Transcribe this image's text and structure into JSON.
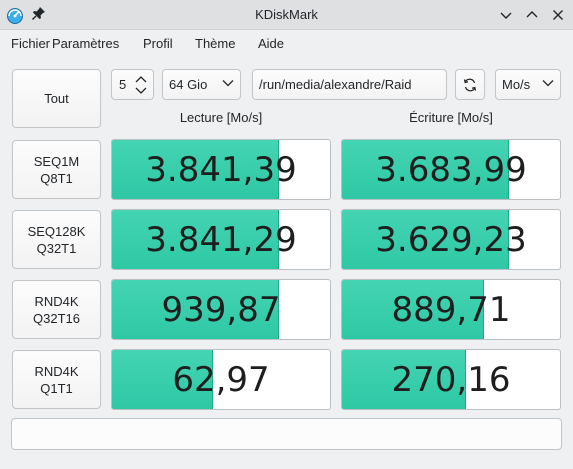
{
  "window": {
    "title": "KDiskMark"
  },
  "menu": [
    "Fichier",
    "Paramètres",
    "Profil",
    "Thème",
    "Aide"
  ],
  "toolbar": {
    "all_button": "Tout",
    "runs": "5",
    "size": "64 Gio",
    "path": "/run/media/alexandre/Raid",
    "unit": "Mo/s"
  },
  "headers": {
    "read": "Lecture [Mo/s]",
    "write": "Écriture [Mo/s]"
  },
  "tests": [
    {
      "name": "SEQ1M\nQ8T1",
      "read": "3.841,39",
      "write": "3.683,99",
      "read_fill": 0.765,
      "write_fill": 0.765
    },
    {
      "name": "SEQ128K\nQ32T1",
      "read": "3.841,29",
      "write": "3.629,23",
      "read_fill": 0.765,
      "write_fill": 0.765
    },
    {
      "name": "RND4K\nQ32T16",
      "read": "939,87",
      "write": "889,71",
      "read_fill": 0.765,
      "write_fill": 0.65
    },
    {
      "name": "RND4K\nQ1T1",
      "read": "62,97",
      "write": "270,16",
      "read_fill": 0.465,
      "write_fill": 0.57
    }
  ],
  "status": "",
  "colors": {
    "accent": "#3dcfad",
    "background": "#eff0f1"
  }
}
